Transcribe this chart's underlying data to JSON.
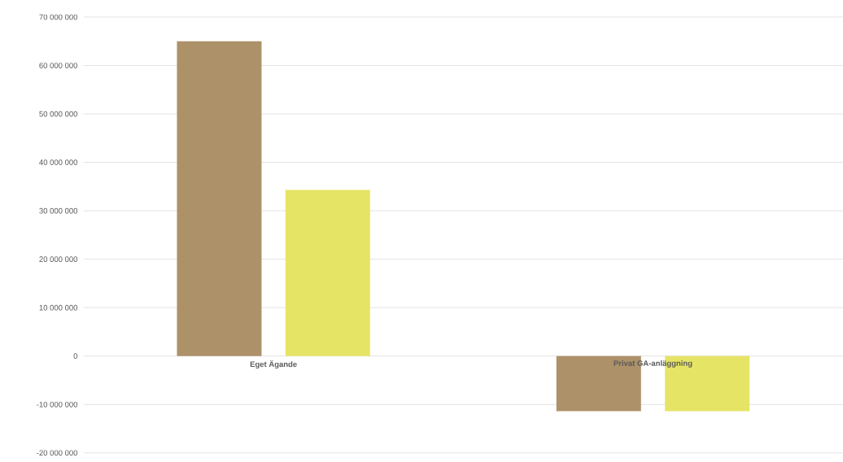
{
  "chart_data": {
    "type": "bar",
    "categories": [
      "Eget Ägande",
      "Privat GA-anläggning"
    ],
    "series": [
      {
        "color": "#ad9169",
        "values": [
          65000000,
          -11400000
        ]
      },
      {
        "color": "#e6e465",
        "values": [
          34300000,
          -11400000
        ]
      }
    ],
    "ylim": [
      -20000000,
      70000000
    ],
    "yticks": [
      {
        "value": -20000000,
        "label": "-20 000 000"
      },
      {
        "value": -10000000,
        "label": "-10 000 000"
      },
      {
        "value": 0,
        "label": "0"
      },
      {
        "value": 10000000,
        "label": "10 000 000"
      },
      {
        "value": 20000000,
        "label": "20 000 000"
      },
      {
        "value": 30000000,
        "label": "30 000 000"
      },
      {
        "value": 40000000,
        "label": "40 000 000"
      },
      {
        "value": 50000000,
        "label": "50 000 000"
      },
      {
        "value": 60000000,
        "label": "60 000 000"
      },
      {
        "value": 70000000,
        "label": "70 000 000"
      }
    ],
    "grid": "y"
  }
}
